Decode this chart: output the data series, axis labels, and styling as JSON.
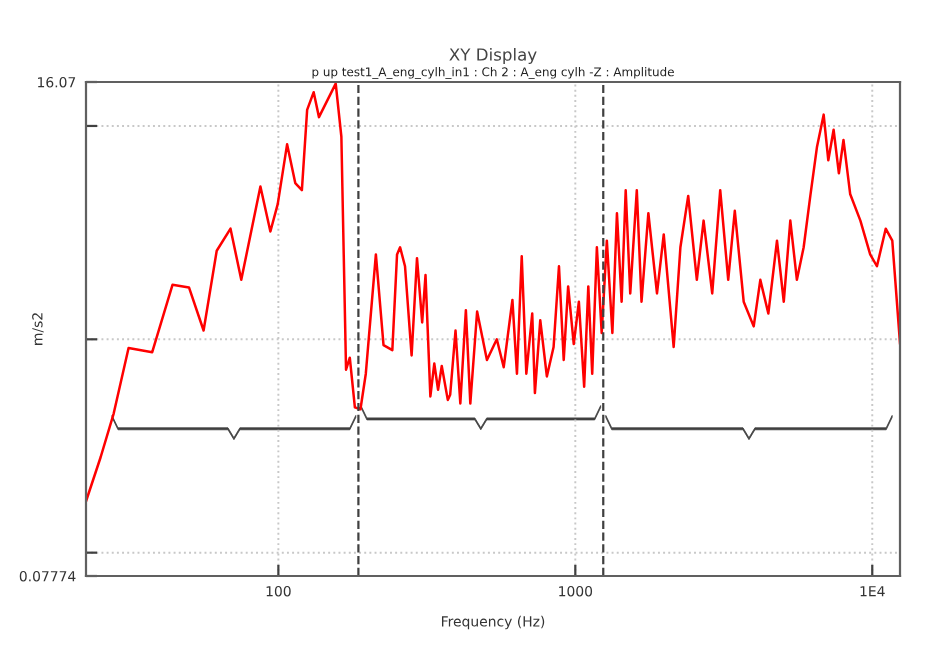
{
  "chart_data": {
    "type": "line",
    "title": "XY Display",
    "subtitle": "p up test1_A_eng_cylh_in1 : Ch 2 : A_eng cylh -Z : Amplitude",
    "xlabel": "Frequency (Hz)",
    "ylabel": "m/s2",
    "log": "xy",
    "grid": true,
    "marker": "none",
    "line_style": "solid",
    "xlim": [
      22.5,
      12400
    ],
    "ylim": [
      0.07774,
      16.07
    ],
    "xticks": [
      100,
      1000,
      {
        "value": 10000,
        "label": "1E4"
      }
    ],
    "yticks": [
      {
        "value": 0.07774,
        "label": "0.07774"
      },
      {
        "value": 0.1,
        "label": null
      },
      {
        "value": 1,
        "label": null
      },
      {
        "value": 10,
        "label": null
      },
      {
        "value": 16.07,
        "label": "16.07"
      }
    ],
    "ref_lines": [
      {
        "axis": "x",
        "value": 186,
        "label": null,
        "color": "#404040",
        "line_style": "dashed"
      },
      {
        "axis": "x",
        "value": 1242,
        "label": null,
        "color": "#404040",
        "line_style": "dashed"
      }
    ],
    "series": [
      {
        "color": "#ff0000",
        "x": [
          22.5,
          25.2,
          27.9,
          31.3,
          37.6,
          44,
          50,
          56,
          62,
          69,
          75,
          87,
          94,
          99.5,
          107,
          114,
          120,
          125,
          131.5,
          137,
          156,
          163,
          169,
          174,
          181,
          189,
          197,
          213,
          226,
          242,
          251,
          257,
          267,
          281,
          293,
          305,
          313,
          325,
          335,
          345,
          355,
          372,
          379,
          395,
          410,
          428,
          443,
          467,
          504,
          544,
          574,
          614,
          636,
          660,
          684,
          716,
          731,
          762,
          802,
          845,
          881,
          914,
          946,
          988,
          1028,
          1071,
          1106,
          1140,
          1182,
          1227,
          1277,
          1333,
          1381,
          1432,
          1478,
          1531,
          1611,
          1671,
          1762,
          1884,
          1985,
          2144,
          2259,
          2400,
          2566,
          2704,
          2891,
          3076,
          3273,
          3444,
          3690,
          3988,
          4198,
          4467,
          4777,
          5035,
          5297,
          5574,
          5875,
          6186,
          6516,
          6860,
          7112,
          7410,
          7720,
          8000,
          8425,
          9120,
          9840,
          10370,
          11100,
          11680,
          12400
        ],
        "values": [
          0.174,
          0.28,
          0.45,
          0.91,
          0.87,
          1.8,
          1.75,
          1.1,
          2.6,
          3.3,
          1.9,
          5.2,
          3.2,
          4.3,
          8.2,
          5.4,
          5.0,
          11.9,
          14.4,
          11,
          15.8,
          8.9,
          0.72,
          0.82,
          0.48,
          0.47,
          0.69,
          2.5,
          0.94,
          0.89,
          2.5,
          2.7,
          2.2,
          0.84,
          2.4,
          1.2,
          2.0,
          0.54,
          0.77,
          0.58,
          0.75,
          0.52,
          0.55,
          1.1,
          0.5,
          1.37,
          0.5,
          1.35,
          0.8,
          1.0,
          0.74,
          1.53,
          0.69,
          2.45,
          0.69,
          1.32,
          0.56,
          1.23,
          0.67,
          0.92,
          2.2,
          0.8,
          1.77,
          0.95,
          1.5,
          0.6,
          1.77,
          0.69,
          2.7,
          1.07,
          2.9,
          1.07,
          3.9,
          1.5,
          5.0,
          1.64,
          5.0,
          1.5,
          3.9,
          1.64,
          3.1,
          0.92,
          2.7,
          4.7,
          1.9,
          3.6,
          1.64,
          5.0,
          1.9,
          4.0,
          1.5,
          1.15,
          1.9,
          1.32,
          2.9,
          1.5,
          3.6,
          1.9,
          2.7,
          4.7,
          8.0,
          11.3,
          6.9,
          9.6,
          6.0,
          8.6,
          4.8,
          3.6,
          2.5,
          2.2,
          3.3,
          2.9,
          0.96
        ]
      }
    ]
  }
}
